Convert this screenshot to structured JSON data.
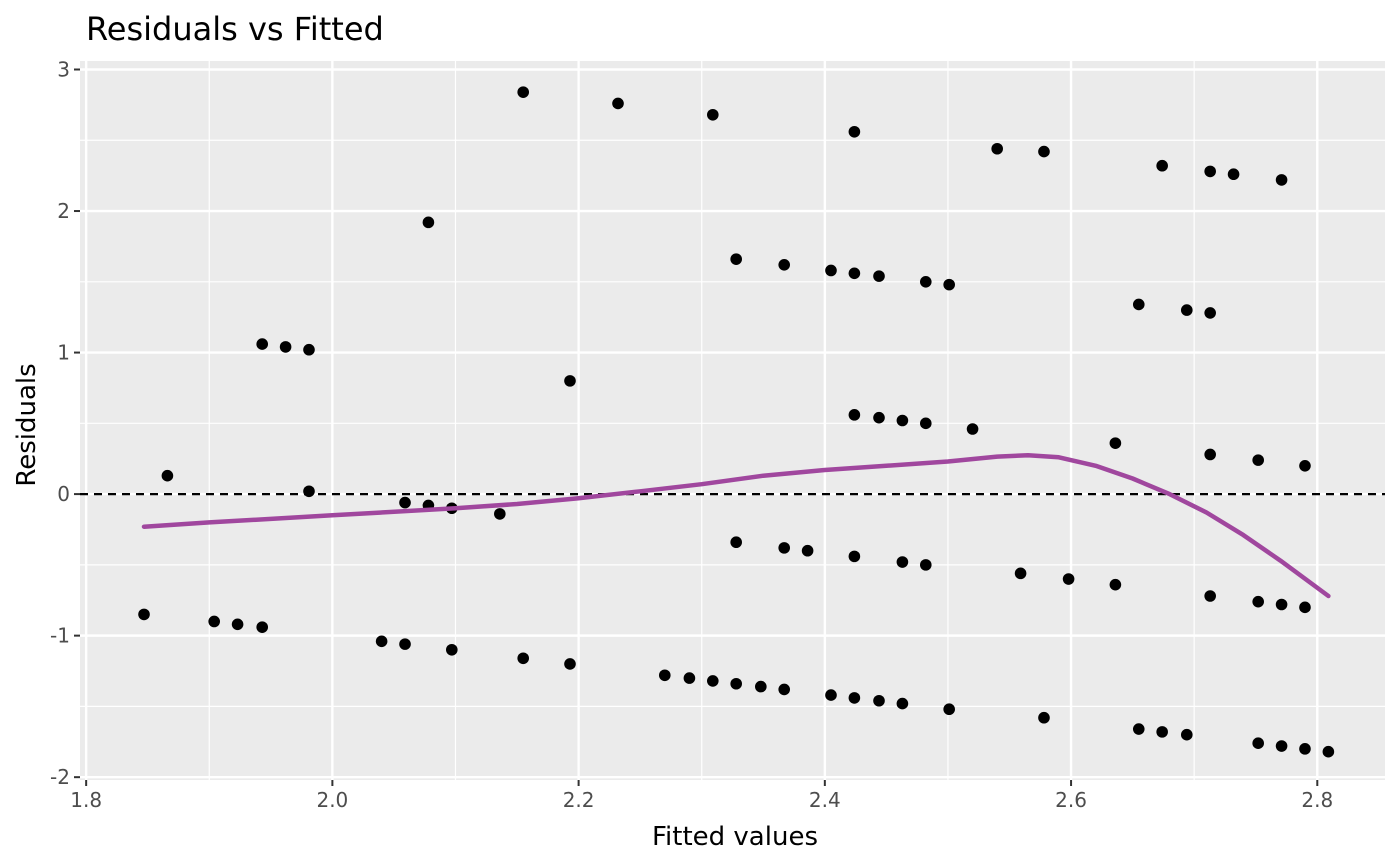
{
  "chart_data": {
    "type": "scatter",
    "title": "Residuals vs Fitted",
    "xlabel": "Fitted values",
    "ylabel": "Residuals",
    "xlim": [
      1.795,
      2.855
    ],
    "ylim": [
      -2.02,
      3.06
    ],
    "x_ticks": [
      1.8,
      2.0,
      2.2,
      2.4,
      2.6,
      2.8
    ],
    "x_tick_labels": [
      "1.8",
      "2.0",
      "2.2",
      "2.4",
      "2.6",
      "2.8"
    ],
    "y_ticks": [
      -2,
      -1,
      0,
      1,
      2,
      3
    ],
    "y_tick_labels": [
      "-2",
      "-1",
      "0",
      "1",
      "2",
      "3"
    ],
    "grid": true,
    "reference_line": {
      "y": 0,
      "style": "dashed"
    },
    "colors": {
      "panel_background": "#ebebeb",
      "grid": "#ffffff",
      "points": "#000000",
      "smooth": "#a0479e",
      "reference_line": "#000000"
    },
    "points": [
      [
        1.847,
        -0.85
      ],
      [
        1.866,
        0.13
      ],
      [
        1.904,
        -0.9
      ],
      [
        1.923,
        -0.92
      ],
      [
        1.943,
        -0.94
      ],
      [
        1.943,
        1.06
      ],
      [
        1.962,
        1.04
      ],
      [
        1.981,
        1.02
      ],
      [
        1.981,
        0.02
      ],
      [
        2.04,
        -1.04
      ],
      [
        2.059,
        -1.06
      ],
      [
        2.059,
        -0.06
      ],
      [
        2.078,
        -0.08
      ],
      [
        2.078,
        1.92
      ],
      [
        2.097,
        -0.1
      ],
      [
        2.097,
        -1.1
      ],
      [
        2.136,
        -0.14
      ],
      [
        2.155,
        2.84
      ],
      [
        2.155,
        -1.16
      ],
      [
        2.193,
        0.8
      ],
      [
        2.193,
        -1.2
      ],
      [
        2.232,
        2.76
      ],
      [
        2.27,
        -1.28
      ],
      [
        2.29,
        -1.3
      ],
      [
        2.309,
        2.68
      ],
      [
        2.309,
        -1.32
      ],
      [
        2.328,
        1.66
      ],
      [
        2.328,
        -0.34
      ],
      [
        2.328,
        -1.34
      ],
      [
        2.348,
        -1.36
      ],
      [
        2.367,
        1.62
      ],
      [
        2.367,
        -0.38
      ],
      [
        2.367,
        -1.38
      ],
      [
        2.386,
        -0.4
      ],
      [
        2.405,
        1.58
      ],
      [
        2.405,
        -1.42
      ],
      [
        2.424,
        2.56
      ],
      [
        2.424,
        1.56
      ],
      [
        2.424,
        0.56
      ],
      [
        2.424,
        -0.44
      ],
      [
        2.424,
        -1.44
      ],
      [
        2.444,
        1.54
      ],
      [
        2.444,
        0.54
      ],
      [
        2.444,
        -1.46
      ],
      [
        2.463,
        0.52
      ],
      [
        2.463,
        -0.48
      ],
      [
        2.463,
        -1.48
      ],
      [
        2.482,
        1.5
      ],
      [
        2.482,
        0.5
      ],
      [
        2.482,
        -0.5
      ],
      [
        2.501,
        1.48
      ],
      [
        2.501,
        -1.52
      ],
      [
        2.52,
        0.46
      ],
      [
        2.54,
        2.44
      ],
      [
        2.559,
        -0.56
      ],
      [
        2.578,
        2.42
      ],
      [
        2.578,
        -1.58
      ],
      [
        2.598,
        -0.6
      ],
      [
        2.636,
        0.36
      ],
      [
        2.636,
        -0.64
      ],
      [
        2.655,
        1.34
      ],
      [
        2.655,
        -1.66
      ],
      [
        2.674,
        2.32
      ],
      [
        2.674,
        -1.68
      ],
      [
        2.694,
        1.3
      ],
      [
        2.694,
        -1.7
      ],
      [
        2.713,
        2.28
      ],
      [
        2.713,
        1.28
      ],
      [
        2.713,
        0.28
      ],
      [
        2.713,
        -0.72
      ],
      [
        2.732,
        2.26
      ],
      [
        2.752,
        0.24
      ],
      [
        2.752,
        -0.76
      ],
      [
        2.752,
        -1.76
      ],
      [
        2.771,
        2.22
      ],
      [
        2.771,
        -0.78
      ],
      [
        2.771,
        -1.78
      ],
      [
        2.79,
        0.2
      ],
      [
        2.79,
        -0.8
      ],
      [
        2.79,
        -1.8
      ],
      [
        2.809,
        -1.82
      ]
    ],
    "smooth_line": [
      [
        1.847,
        -0.23
      ],
      [
        1.9,
        -0.2
      ],
      [
        2.0,
        -0.15
      ],
      [
        2.1,
        -0.1
      ],
      [
        2.15,
        -0.07
      ],
      [
        2.2,
        -0.03
      ],
      [
        2.25,
        0.02
      ],
      [
        2.3,
        0.07
      ],
      [
        2.35,
        0.13
      ],
      [
        2.4,
        0.17
      ],
      [
        2.45,
        0.2
      ],
      [
        2.5,
        0.23
      ],
      [
        2.54,
        0.265
      ],
      [
        2.565,
        0.275
      ],
      [
        2.59,
        0.26
      ],
      [
        2.62,
        0.2
      ],
      [
        2.65,
        0.11
      ],
      [
        2.68,
        0.0
      ],
      [
        2.71,
        -0.13
      ],
      [
        2.74,
        -0.29
      ],
      [
        2.77,
        -0.47
      ],
      [
        2.809,
        -0.72
      ]
    ]
  }
}
